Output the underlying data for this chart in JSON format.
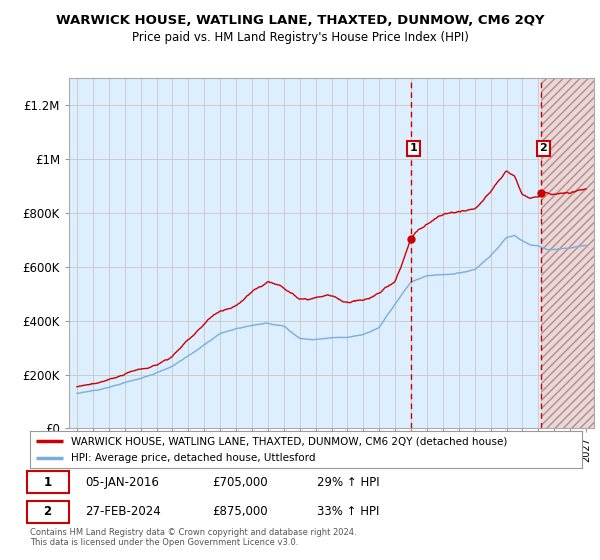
{
  "title": "WARWICK HOUSE, WATLING LANE, THAXTED, DUNMOW, CM6 2QY",
  "subtitle": "Price paid vs. HM Land Registry's House Price Index (HPI)",
  "legend_line1": "WARWICK HOUSE, WATLING LANE, THAXTED, DUNMOW, CM6 2QY (detached house)",
  "legend_line2": "HPI: Average price, detached house, Uttlesford",
  "annotation1_date": "05-JAN-2016",
  "annotation1_price": "£705,000",
  "annotation1_hpi": "29% ↑ HPI",
  "annotation2_date": "27-FEB-2024",
  "annotation2_price": "£875,000",
  "annotation2_hpi": "33% ↑ HPI",
  "footnote": "Contains HM Land Registry data © Crown copyright and database right 2024.\nThis data is licensed under the Open Government Licence v3.0.",
  "red_color": "#cc0000",
  "blue_color": "#7aaddb",
  "grid_color": "#cccccc",
  "bg_color": "#ddeeff",
  "ylim": [
    0,
    1300000
  ],
  "yticks": [
    0,
    200000,
    400000,
    600000,
    800000,
    1000000,
    1200000
  ],
  "xlim_start": 1994.5,
  "xlim_end": 2027.5,
  "sale1_x": 2016.02,
  "sale1_y": 705000,
  "sale2_x": 2024.16,
  "sale2_y": 875000
}
